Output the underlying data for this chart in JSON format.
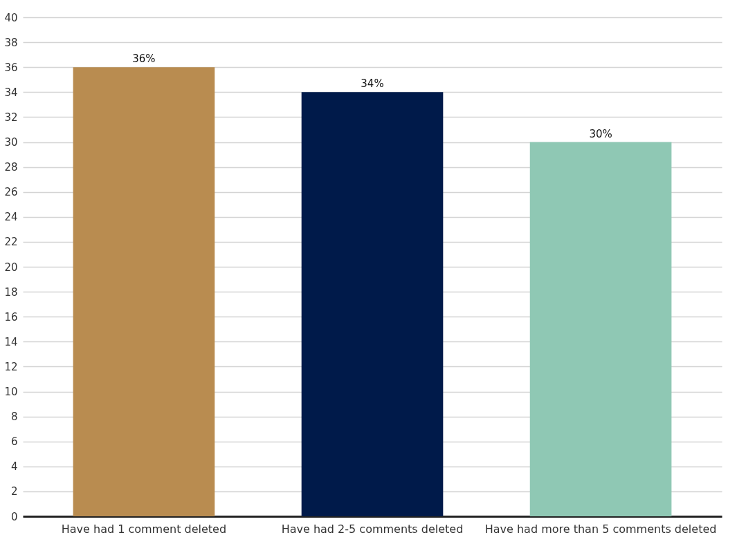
{
  "chart_data": {
    "type": "bar",
    "categories": [
      "Have had 1 comment deleted",
      "Have had 2-5 comments deleted",
      "Have had more than 5 comments deleted"
    ],
    "values": [
      36,
      34,
      30
    ],
    "colors": [
      "#b98c50",
      "#001a4a",
      "#8fc8b4"
    ],
    "value_labels": [
      "36%",
      "34%",
      "30%"
    ],
    "ylim": [
      0,
      40
    ],
    "yticks": [
      0,
      2,
      4,
      6,
      8,
      10,
      12,
      14,
      16,
      18,
      20,
      22,
      24,
      26,
      28,
      30,
      32,
      34,
      36,
      38,
      40
    ],
    "grid": "y"
  }
}
